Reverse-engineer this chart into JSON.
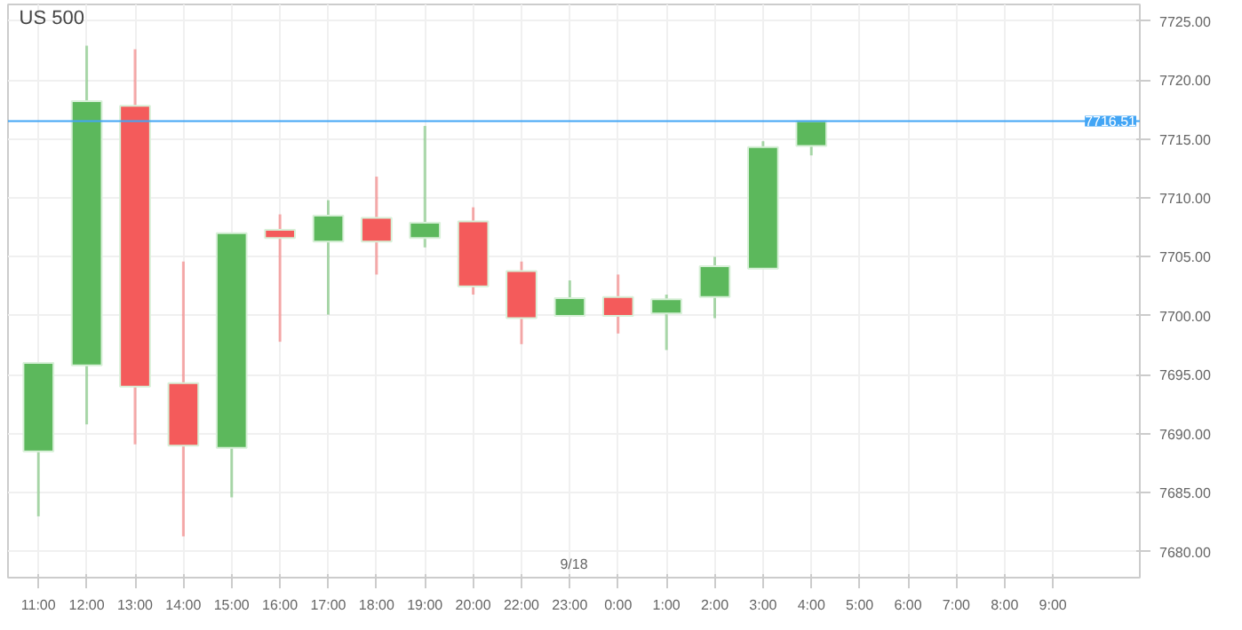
{
  "chart_data": {
    "type": "candlestick",
    "title": "US 500",
    "categories": [
      "11:00",
      "12:00",
      "13:00",
      "14:00",
      "15:00",
      "16:00",
      "17:00",
      "18:00",
      "19:00",
      "20:00",
      "22:00",
      "23:00",
      "0:00",
      "1:00",
      "2:00",
      "3:00",
      "4:00",
      "5:00",
      "6:00",
      "7:00",
      "8:00",
      "9:00"
    ],
    "ohlc": [
      [
        7688.5,
        7696.0,
        7683.0,
        7696.0
      ],
      [
        7695.8,
        7722.9,
        7690.8,
        7718.2
      ],
      [
        7717.8,
        7722.6,
        7689.1,
        7694.0
      ],
      [
        7694.3,
        7704.6,
        7681.3,
        7689.0
      ],
      [
        7688.8,
        7707.0,
        7684.6,
        7707.0
      ],
      [
        7707.3,
        7708.6,
        7697.8,
        7706.6
      ],
      [
        7706.3,
        7709.8,
        7700.1,
        7708.5
      ],
      [
        7708.3,
        7711.8,
        7703.5,
        7706.3
      ],
      [
        7706.6,
        7716.1,
        7705.8,
        7707.9
      ],
      [
        7708.0,
        7709.2,
        7701.8,
        7702.5
      ],
      [
        7703.8,
        7704.6,
        7697.6,
        7699.8
      ],
      [
        7700.0,
        7703.0,
        7700.0,
        7701.5
      ],
      [
        7701.6,
        7703.5,
        7698.5,
        7700.0
      ],
      [
        7700.2,
        7701.8,
        7697.1,
        7701.4
      ],
      [
        7701.6,
        7705.0,
        7699.8,
        7704.2
      ],
      [
        7704.0,
        7714.8,
        7704.0,
        7714.3
      ],
      [
        7714.4,
        7716.5,
        7713.6,
        7716.5
      ],
      null,
      null,
      null,
      null,
      null
    ],
    "colors": [
      "#5cb85c",
      "#5cb85c",
      "#f45b5b",
      "#f45b5b",
      "#5cb85c",
      "#f45b5b",
      "#5cb85c",
      "#f45b5b",
      "#5cb85c",
      "#f45b5b",
      "#f45b5b",
      "#5cb85c",
      "#f45b5b",
      "#5cb85c",
      "#5cb85c",
      "#5cb85c",
      "#5cb85c",
      null,
      null,
      null,
      null,
      null
    ],
    "ylim": [
      7677.8,
      7726.4
    ],
    "yticks": [
      {
        "value": 7680,
        "label": "7680.00"
      },
      {
        "value": 7685,
        "label": "7685.00"
      },
      {
        "value": 7690,
        "label": "7690.00"
      },
      {
        "value": 7695,
        "label": "7695.00"
      },
      {
        "value": 7700,
        "label": "7700.00"
      },
      {
        "value": 7705,
        "label": "7705.00"
      },
      {
        "value": 7710,
        "label": "7710.00"
      },
      {
        "value": 7715,
        "label": "7715.00"
      },
      {
        "value": 7720,
        "label": "7720.00"
      },
      {
        "value": 7725,
        "label": "7725.00"
      }
    ],
    "ref_lines": [
      {
        "axis": "y",
        "value": 7716.51,
        "label": "7716.51",
        "color": "#42a5f5"
      }
    ],
    "annotations": [
      "9/18"
    ],
    "grid": true
  }
}
